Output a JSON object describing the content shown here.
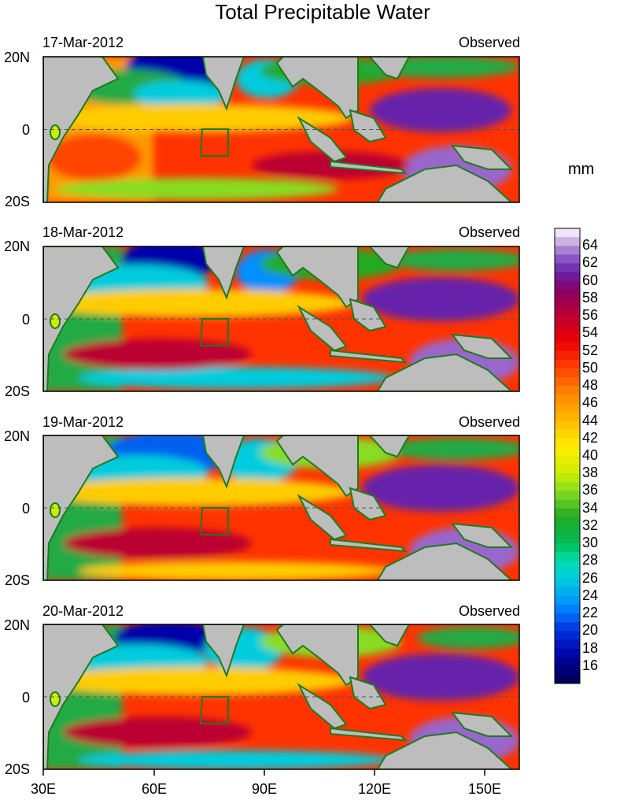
{
  "title": "Total Precipitable Water",
  "unit": "mm",
  "panels": [
    {
      "date": "17-Mar-2012",
      "label": "Observed"
    },
    {
      "date": "18-Mar-2012",
      "label": "Observed"
    },
    {
      "date": "19-Mar-2012",
      "label": "Observed"
    },
    {
      "date": "20-Mar-2012",
      "label": "Observed"
    }
  ],
  "lat_labels": [
    "20N",
    "0",
    "20S"
  ],
  "lon_labels": [
    "30E",
    "60E",
    "90E",
    "120E",
    "150E"
  ],
  "map_extent": {
    "lon": [
      30,
      160
    ],
    "lat": [
      -20,
      20
    ]
  },
  "colorbar": {
    "min": 14,
    "max": 66,
    "step": 1,
    "tick_labels": [
      "64",
      "62",
      "60",
      "58",
      "56",
      "54",
      "52",
      "50",
      "48",
      "46",
      "44",
      "42",
      "40",
      "38",
      "36",
      "34",
      "32",
      "30",
      "28",
      "26",
      "24",
      "22",
      "20",
      "18",
      "16"
    ],
    "color_stops": [
      {
        "v": 14,
        "c": "#000050"
      },
      {
        "v": 17,
        "c": "#0000a0"
      },
      {
        "v": 20,
        "c": "#0030e0"
      },
      {
        "v": 23,
        "c": "#0090ff"
      },
      {
        "v": 26,
        "c": "#00ccdd"
      },
      {
        "v": 28,
        "c": "#00ddaa"
      },
      {
        "v": 30,
        "c": "#00bb55"
      },
      {
        "v": 33,
        "c": "#22aa22"
      },
      {
        "v": 36,
        "c": "#88dd22"
      },
      {
        "v": 38,
        "c": "#ccee00"
      },
      {
        "v": 41,
        "c": "#ffee00"
      },
      {
        "v": 44,
        "c": "#ffbb00"
      },
      {
        "v": 47,
        "c": "#ff8800"
      },
      {
        "v": 50,
        "c": "#ff4400"
      },
      {
        "v": 53,
        "c": "#ee0000"
      },
      {
        "v": 56,
        "c": "#bb0033"
      },
      {
        "v": 59,
        "c": "#880066"
      },
      {
        "v": 61,
        "c": "#6622aa"
      },
      {
        "v": 63,
        "c": "#9966cc"
      },
      {
        "v": 65,
        "c": "#ddccee"
      },
      {
        "v": 66,
        "c": "#ffffff"
      }
    ]
  },
  "colors": {
    "land": "#bdbdbd",
    "coast": "#1f7a1f",
    "box": "#1f7a1f",
    "equator": "#555555"
  }
}
